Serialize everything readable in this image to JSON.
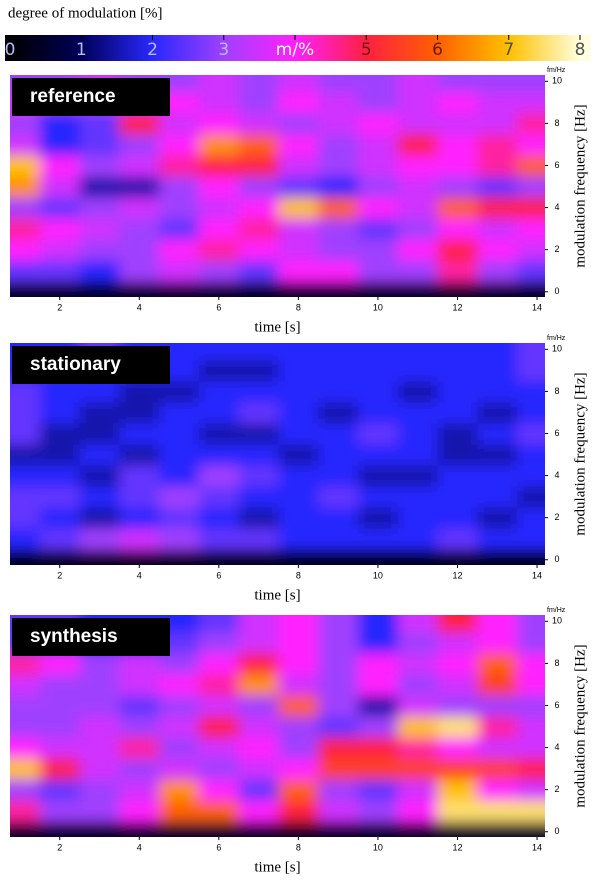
{
  "colorbar": {
    "label": "degree of modulation [%]",
    "clim": [
      0,
      8
    ],
    "ticks": [
      0,
      1,
      2,
      3,
      {
        "value": 4,
        "label": "m/%"
      },
      5,
      6,
      7,
      8
    ],
    "colors": [
      "#000000",
      "#000058",
      "#2828ff",
      "#a040ff",
      "#ff20ff",
      "#ff2040",
      "#ff6000",
      "#ffc000",
      "#ffffe0"
    ]
  },
  "chart_data": [
    {
      "type": "heatmap",
      "label": "reference",
      "xlabel": "time [s]",
      "ylabel": "modulation frequency [Hz]",
      "unit": "fm/Hz",
      "xlim": [
        0.75,
        14.2
      ],
      "ylim": [
        -0.25,
        10.3
      ],
      "xticks": [
        2,
        4,
        6,
        8,
        10,
        12,
        14
      ],
      "yticks": [
        0,
        2,
        4,
        6,
        8,
        10
      ],
      "x": [
        1,
        2,
        3,
        4,
        5,
        6,
        7,
        8,
        9,
        10,
        11,
        12,
        13,
        14
      ],
      "y": [
        0,
        1,
        2,
        3,
        4,
        5,
        6,
        7,
        8,
        9,
        10
      ],
      "z": [
        [
          0.5,
          0.5,
          0.5,
          0.5,
          0.5,
          0.5,
          0.5,
          0.5,
          0.5,
          0.5,
          0.5,
          0.5,
          0.5,
          0.5
        ],
        [
          2.5,
          2.5,
          2,
          3,
          3.5,
          3,
          2.5,
          4,
          4,
          3,
          3,
          4.5,
          3,
          2.5
        ],
        [
          4,
          3.5,
          3,
          3,
          4,
          4.5,
          4,
          3.5,
          3,
          3,
          4,
          5,
          4,
          3.5
        ],
        [
          4.5,
          4,
          3.5,
          3,
          2.5,
          4,
          4.5,
          3.5,
          3,
          2.5,
          3,
          4,
          3.5,
          4
        ],
        [
          3,
          2.5,
          3,
          3.5,
          3,
          3.5,
          4,
          7,
          6,
          4,
          3.5,
          6,
          5,
          5
        ],
        [
          6.5,
          3.5,
          1.5,
          1.5,
          3,
          4,
          3,
          2.5,
          2,
          3,
          3.5,
          3,
          2.5,
          3
        ],
        [
          7,
          4,
          3,
          3.5,
          4.5,
          5,
          5,
          3.5,
          3,
          3.5,
          4,
          4,
          4.5,
          6
        ],
        [
          3.5,
          2,
          2.5,
          3,
          4,
          6.5,
          6,
          4,
          3,
          3.5,
          5,
          4,
          4.5,
          4
        ],
        [
          3,
          2,
          2.5,
          5,
          3.5,
          4,
          3.5,
          3,
          3.5,
          4,
          3.5,
          3.5,
          3.5,
          4.5
        ],
        [
          3.5,
          3,
          3,
          3.5,
          4,
          3.5,
          3,
          4,
          3.5,
          3,
          3.5,
          4,
          3.5,
          3.5
        ],
        [
          3,
          3,
          3.5,
          3,
          3,
          3.5,
          3,
          3.5,
          3,
          3,
          3.5,
          3,
          3,
          3
        ]
      ]
    },
    {
      "type": "heatmap",
      "label": "stationary",
      "xlabel": "time [s]",
      "ylabel": "modulation frequency [Hz]",
      "unit": "fm/Hz",
      "xlim": [
        0.75,
        14.2
      ],
      "ylim": [
        -0.25,
        10.3
      ],
      "xticks": [
        2,
        4,
        6,
        8,
        10,
        12,
        14
      ],
      "yticks": [
        0,
        2,
        4,
        6,
        8,
        10
      ],
      "x": [
        1,
        2,
        3,
        4,
        5,
        6,
        7,
        8,
        9,
        10,
        11,
        12,
        13,
        14
      ],
      "y": [
        0,
        1,
        2,
        3,
        4,
        5,
        6,
        7,
        8,
        9,
        10
      ],
      "z": [
        [
          0.3,
          0.3,
          0.3,
          0.3,
          0.3,
          0.3,
          0.3,
          0.3,
          0.3,
          0.3,
          0.3,
          0.3,
          0.3,
          0.3
        ],
        [
          2,
          2.5,
          3,
          3.5,
          3,
          2.5,
          2.5,
          2,
          2,
          2,
          2,
          2.5,
          2,
          2
        ],
        [
          2.5,
          2,
          1.5,
          2,
          2.5,
          2,
          1.5,
          2,
          2,
          1.5,
          2,
          2,
          1.5,
          2
        ],
        [
          2.5,
          2.5,
          2,
          2.5,
          3,
          2.5,
          2,
          2,
          2.5,
          2,
          2,
          2,
          2,
          1.5
        ],
        [
          2,
          2,
          1.5,
          2.5,
          2,
          3,
          2.5,
          2,
          2,
          1.5,
          1.5,
          2,
          2,
          2
        ],
        [
          1.5,
          1.5,
          2,
          1.5,
          2,
          2,
          2,
          1.5,
          2,
          2,
          2,
          1.5,
          1.5,
          2
        ],
        [
          2.5,
          1.5,
          1.5,
          2,
          2,
          1.5,
          1.5,
          2,
          2,
          2.5,
          2,
          1.5,
          2,
          2.5
        ],
        [
          2.5,
          2,
          1.5,
          1.5,
          2,
          2,
          2.5,
          2,
          1.5,
          2,
          2,
          2,
          1.5,
          2
        ],
        [
          2.5,
          2,
          2,
          1.5,
          1.5,
          2,
          2,
          2,
          2,
          2,
          1.5,
          2,
          2,
          2
        ],
        [
          2,
          2,
          2,
          2,
          2,
          1.5,
          1.5,
          2,
          2,
          2,
          2,
          2,
          2,
          2.5
        ],
        [
          2,
          2,
          2.5,
          2,
          2,
          2,
          2,
          2,
          2,
          2,
          2,
          2,
          2,
          2.5
        ]
      ]
    },
    {
      "type": "heatmap",
      "label": "synthesis",
      "xlabel": "time [s]",
      "ylabel": "modulation frequency [Hz]",
      "unit": "fm/Hz",
      "xlim": [
        0.75,
        14.2
      ],
      "ylim": [
        -0.25,
        10.3
      ],
      "xticks": [
        2,
        4,
        6,
        8,
        10,
        12,
        14
      ],
      "yticks": [
        0,
        2,
        4,
        6,
        8,
        10
      ],
      "x": [
        1,
        2,
        3,
        4,
        5,
        6,
        7,
        8,
        9,
        10,
        11,
        12,
        13,
        14
      ],
      "y": [
        0,
        1,
        2,
        3,
        4,
        5,
        6,
        7,
        8,
        9,
        10
      ],
      "z": [
        [
          0.5,
          0.5,
          0.5,
          0.5,
          0.5,
          0.5,
          0.5,
          0.5,
          0.5,
          0.5,
          0.5,
          0.5,
          0.5,
          0.5
        ],
        [
          4.5,
          3,
          3,
          4,
          6,
          6,
          4,
          5,
          3.5,
          3,
          4,
          7.5,
          7.5,
          7.5
        ],
        [
          3,
          2.5,
          3,
          3.5,
          6.5,
          4,
          2.5,
          6,
          3,
          2.5,
          3.5,
          7,
          4,
          3.5
        ],
        [
          7,
          5,
          3.5,
          3,
          3.5,
          3,
          3.5,
          4,
          5.5,
          5.5,
          5.5,
          5.5,
          5.5,
          5
        ],
        [
          4,
          3.5,
          3.5,
          4.5,
          3,
          3.5,
          4,
          3,
          5,
          5,
          4.5,
          4,
          3.5,
          3.5
        ],
        [
          3,
          3,
          3.5,
          3,
          3.5,
          5,
          3.5,
          3,
          2.5,
          3,
          7,
          7.5,
          4.5,
          3.5
        ],
        [
          3,
          3,
          3,
          2.5,
          3,
          3.5,
          3,
          6,
          3,
          1.5,
          3.5,
          3,
          3,
          3
        ],
        [
          3.5,
          3,
          3,
          3.5,
          4,
          4.5,
          6.5,
          3.5,
          3,
          4,
          3,
          3.5,
          5.5,
          4
        ],
        [
          4.5,
          4,
          3,
          3.5,
          3,
          4,
          5,
          4,
          3,
          4,
          3.5,
          4,
          6,
          4
        ],
        [
          2.5,
          2.5,
          2,
          2,
          2.5,
          3,
          3.5,
          4,
          3,
          2,
          3,
          3.5,
          4,
          3
        ],
        [
          2.5,
          2.5,
          2,
          2,
          2,
          2.5,
          3.5,
          4,
          3,
          2,
          3.5,
          5,
          4,
          3
        ]
      ]
    }
  ]
}
